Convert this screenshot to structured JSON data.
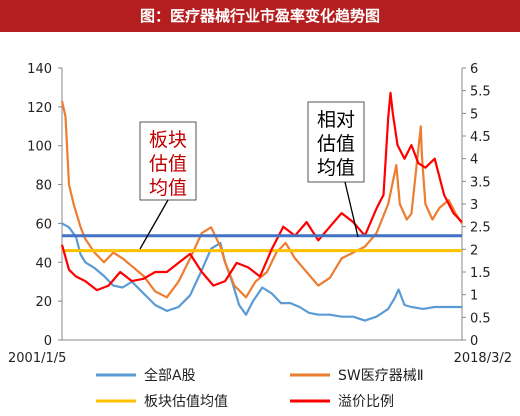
{
  "title": "图：医疗器械行业市盈率变化趋势图",
  "chart_data": {
    "type": "line",
    "x_start_label": "2001/1/5",
    "x_end_label": "2018/3/2",
    "x_range": [
      2001.0,
      2018.17
    ],
    "y_left_ticks": [
      "0",
      "20",
      "40",
      "60",
      "80",
      "100",
      "120",
      "140"
    ],
    "y_left_range": [
      0,
      140
    ],
    "y_right_ticks": [
      "0",
      "0.5",
      "1",
      "1.5",
      "2",
      "2.5",
      "3",
      "3.5",
      "4",
      "4.5",
      "5",
      "5.5",
      "6"
    ],
    "y_right_range": [
      0,
      6
    ],
    "annotations": [
      {
        "text_lines": [
          "板块",
          "估值",
          "均值"
        ],
        "color": "#c00000"
      },
      {
        "text_lines": [
          "相对",
          "估值",
          "均值"
        ],
        "color": "#000000"
      }
    ],
    "series": [
      {
        "name": "全部A股",
        "axis": "left",
        "color": "#5b9bd5",
        "style": "line",
        "points": [
          [
            2001.0,
            60
          ],
          [
            2001.3,
            58
          ],
          [
            2001.6,
            53
          ],
          [
            2001.8,
            44
          ],
          [
            2002.0,
            40
          ],
          [
            2002.4,
            37
          ],
          [
            2002.8,
            33
          ],
          [
            2003.2,
            28
          ],
          [
            2003.6,
            27
          ],
          [
            2004.0,
            30
          ],
          [
            2004.5,
            24
          ],
          [
            2005.0,
            18
          ],
          [
            2005.5,
            15
          ],
          [
            2006.0,
            17
          ],
          [
            2006.5,
            23
          ],
          [
            2007.0,
            36
          ],
          [
            2007.4,
            47
          ],
          [
            2007.8,
            50
          ],
          [
            2008.0,
            40
          ],
          [
            2008.3,
            30
          ],
          [
            2008.6,
            18
          ],
          [
            2008.9,
            13
          ],
          [
            2009.2,
            20
          ],
          [
            2009.6,
            27
          ],
          [
            2010.0,
            24
          ],
          [
            2010.4,
            19
          ],
          [
            2010.8,
            19
          ],
          [
            2011.2,
            17
          ],
          [
            2011.6,
            14
          ],
          [
            2012.0,
            13
          ],
          [
            2012.5,
            13
          ],
          [
            2013.0,
            12
          ],
          [
            2013.5,
            12
          ],
          [
            2014.0,
            10
          ],
          [
            2014.5,
            12
          ],
          [
            2015.0,
            16
          ],
          [
            2015.3,
            22
          ],
          [
            2015.45,
            26
          ],
          [
            2015.7,
            18
          ],
          [
            2016.0,
            17
          ],
          [
            2016.5,
            16
          ],
          [
            2017.0,
            17
          ],
          [
            2017.5,
            17
          ],
          [
            2018.17,
            17
          ]
        ]
      },
      {
        "name": "SW医疗器械Ⅱ",
        "axis": "left",
        "color": "#ed7d31",
        "style": "line",
        "points": [
          [
            2001.0,
            123
          ],
          [
            2001.15,
            115
          ],
          [
            2001.3,
            80
          ],
          [
            2001.5,
            70
          ],
          [
            2001.8,
            58
          ],
          [
            2002.0,
            52
          ],
          [
            2002.4,
            45
          ],
          [
            2002.8,
            40
          ],
          [
            2003.2,
            45
          ],
          [
            2003.6,
            42
          ],
          [
            2004.0,
            38
          ],
          [
            2004.5,
            33
          ],
          [
            2005.0,
            25
          ],
          [
            2005.5,
            22
          ],
          [
            2006.0,
            30
          ],
          [
            2006.5,
            42
          ],
          [
            2007.0,
            55
          ],
          [
            2007.4,
            58
          ],
          [
            2007.8,
            48
          ],
          [
            2008.0,
            40
          ],
          [
            2008.4,
            28
          ],
          [
            2008.9,
            22
          ],
          [
            2009.3,
            30
          ],
          [
            2009.8,
            35
          ],
          [
            2010.2,
            45
          ],
          [
            2010.6,
            50
          ],
          [
            2011.0,
            42
          ],
          [
            2011.5,
            35
          ],
          [
            2012.0,
            28
          ],
          [
            2012.5,
            32
          ],
          [
            2013.0,
            42
          ],
          [
            2013.5,
            45
          ],
          [
            2014.0,
            48
          ],
          [
            2014.5,
            55
          ],
          [
            2015.0,
            70
          ],
          [
            2015.35,
            90
          ],
          [
            2015.5,
            70
          ],
          [
            2015.8,
            62
          ],
          [
            2016.0,
            65
          ],
          [
            2016.4,
            110
          ],
          [
            2016.45,
            95
          ],
          [
            2016.6,
            70
          ],
          [
            2016.9,
            62
          ],
          [
            2017.2,
            68
          ],
          [
            2017.6,
            72
          ],
          [
            2017.9,
            65
          ],
          [
            2018.17,
            60
          ]
        ]
      },
      {
        "name": "板块估值均值",
        "axis": "left",
        "color": "#ffc000",
        "style": "hline",
        "value": 46
      },
      {
        "name": "溢价比例",
        "axis": "right",
        "color": "#ff0000",
        "style": "line",
        "points": [
          [
            2001.0,
            2.1
          ],
          [
            2001.3,
            1.55
          ],
          [
            2001.6,
            1.4
          ],
          [
            2002.0,
            1.3
          ],
          [
            2002.5,
            1.1
          ],
          [
            2003.0,
            1.2
          ],
          [
            2003.5,
            1.5
          ],
          [
            2004.0,
            1.3
          ],
          [
            2004.5,
            1.35
          ],
          [
            2005.0,
            1.5
          ],
          [
            2005.5,
            1.5
          ],
          [
            2006.0,
            1.7
          ],
          [
            2006.5,
            1.9
          ],
          [
            2007.0,
            1.5
          ],
          [
            2007.5,
            1.2
          ],
          [
            2008.0,
            1.3
          ],
          [
            2008.5,
            1.7
          ],
          [
            2009.0,
            1.6
          ],
          [
            2009.5,
            1.4
          ],
          [
            2010.0,
            2.0
          ],
          [
            2010.5,
            2.5
          ],
          [
            2011.0,
            2.3
          ],
          [
            2011.5,
            2.6
          ],
          [
            2012.0,
            2.2
          ],
          [
            2012.5,
            2.5
          ],
          [
            2013.0,
            2.8
          ],
          [
            2013.5,
            2.6
          ],
          [
            2014.0,
            2.3
          ],
          [
            2014.5,
            2.9
          ],
          [
            2014.8,
            3.2
          ],
          [
            2015.0,
            4.9
          ],
          [
            2015.1,
            5.45
          ],
          [
            2015.2,
            5.0
          ],
          [
            2015.4,
            4.3
          ],
          [
            2015.7,
            4.0
          ],
          [
            2016.0,
            4.3
          ],
          [
            2016.3,
            3.9
          ],
          [
            2016.6,
            3.8
          ],
          [
            2017.0,
            4.0
          ],
          [
            2017.4,
            3.2
          ],
          [
            2017.8,
            2.8
          ],
          [
            2018.17,
            2.6
          ]
        ]
      },
      {
        "name": "相对估值均值",
        "axis": "right",
        "color": "#4472c4",
        "style": "hline",
        "value": 2.3,
        "label": "相对估值均值"
      }
    ],
    "legend": [
      {
        "name": "全部A股",
        "color": "#5b9bd5"
      },
      {
        "name": "SW医疗器械Ⅱ",
        "color": "#ed7d31"
      },
      {
        "name": "板块估值均值",
        "color": "#ffc000"
      },
      {
        "name": "溢价比例",
        "color": "#ff0000"
      }
    ],
    "legend_position": "bottom",
    "grid": false
  }
}
